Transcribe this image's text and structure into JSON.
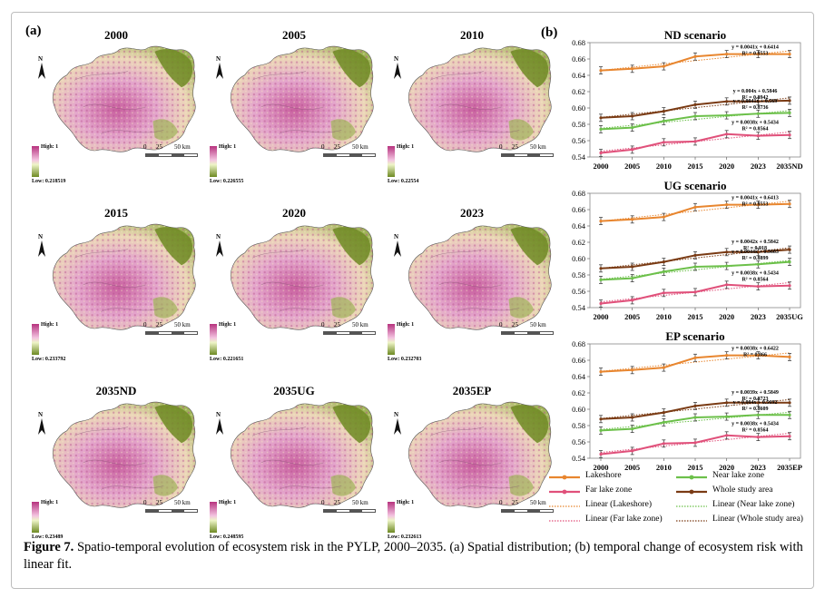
{
  "panel_a_label": "(a)",
  "panel_b_label": "(b)",
  "maps": [
    {
      "title": "2000",
      "low": "Low: 0.218519"
    },
    {
      "title": "2005",
      "low": "Low: 0.226555"
    },
    {
      "title": "2010",
      "low": "Low: 0.22554"
    },
    {
      "title": "2015",
      "low": "Low: 0.233792"
    },
    {
      "title": "2020",
      "low": "Low: 0.221651"
    },
    {
      "title": "2023",
      "low": "Low: 0.232703"
    },
    {
      "title": "2035ND",
      "low": "Low: 0.23489"
    },
    {
      "title": "2035UG",
      "low": "Low: 0.248595"
    },
    {
      "title": "2035EP",
      "low": "Low: 0.232613"
    }
  ],
  "map_common": {
    "high": "High: 1",
    "north": "N",
    "scale_labels": [
      "0",
      "25",
      "50 km"
    ]
  },
  "colors": {
    "lakeshore": "#e8862f",
    "near": "#6cc04a",
    "far": "#e0507a",
    "whole": "#7a3b14",
    "map_pink": "#d98bbf",
    "map_green": "#6e8a23"
  },
  "chart_data": [
    {
      "type": "line",
      "title": "ND scenario",
      "categories": [
        "2000",
        "2005",
        "2010",
        "2015",
        "2020",
        "2023",
        "2035ND"
      ],
      "ylim": [
        0.54,
        0.68
      ],
      "yticks": [
        "0.54",
        "0.56",
        "0.58",
        "0.60",
        "0.62",
        "0.64",
        "0.66",
        "0.68"
      ],
      "series": [
        {
          "name": "Lakeshore",
          "key": "lakeshore",
          "values": [
            0.646,
            0.648,
            0.651,
            0.663,
            0.666,
            0.666,
            0.666
          ]
        },
        {
          "name": "Whole study area",
          "key": "whole",
          "values": [
            0.588,
            0.59,
            0.596,
            0.604,
            0.608,
            0.608,
            0.609
          ]
        },
        {
          "name": "Near lake zone",
          "key": "near",
          "values": [
            0.574,
            0.576,
            0.584,
            0.59,
            0.591,
            0.593,
            0.594
          ]
        },
        {
          "name": "Far lake zone",
          "key": "far",
          "values": [
            0.545,
            0.549,
            0.558,
            0.559,
            0.568,
            0.566,
            0.567
          ]
        }
      ],
      "fit_labels": [
        {
          "eq": "y = 0.0041x + 0.6414",
          "r2": "R² = 0.8553"
        },
        {
          "eq": "y = 0.004x + 0.5846",
          "r2": "R² = 0.8942"
        },
        {
          "eq": "y = 0.0041x + 0.569",
          "r2": "R² = 0.8736"
        },
        {
          "eq": "y = 0.0038x + 0.5434",
          "r2": "R² = 0.8564"
        }
      ]
    },
    {
      "type": "line",
      "title": "UG scenario",
      "categories": [
        "2000",
        "2005",
        "2010",
        "2015",
        "2020",
        "2023",
        "2035UG"
      ],
      "ylim": [
        0.54,
        0.68
      ],
      "yticks": [
        "0.54",
        "0.56",
        "0.58",
        "0.60",
        "0.62",
        "0.64",
        "0.66",
        "0.68"
      ],
      "series": [
        {
          "name": "Lakeshore",
          "key": "lakeshore",
          "values": [
            0.646,
            0.648,
            0.651,
            0.663,
            0.666,
            0.666,
            0.667
          ]
        },
        {
          "name": "Whole study area",
          "key": "whole",
          "values": [
            0.588,
            0.59,
            0.596,
            0.604,
            0.608,
            0.608,
            0.611
          ]
        },
        {
          "name": "Near lake zone",
          "key": "near",
          "values": [
            0.574,
            0.576,
            0.584,
            0.59,
            0.591,
            0.593,
            0.596
          ]
        },
        {
          "name": "Far lake zone",
          "key": "far",
          "values": [
            0.545,
            0.549,
            0.558,
            0.559,
            0.568,
            0.566,
            0.567
          ]
        }
      ],
      "fit_labels": [
        {
          "eq": "y = 0.0041x + 0.6413",
          "r2": "R² = 0.8553"
        },
        {
          "eq": "y = 0.0042x + 0.5842",
          "r2": "R² = 0.918"
        },
        {
          "eq": "y = 0.0044x + 0.5683",
          "r2": "R² = 0.8899"
        },
        {
          "eq": "y = 0.0038x + 0.5434",
          "r2": "R² = 0.8564"
        }
      ]
    },
    {
      "type": "line",
      "title": "EP scenario",
      "categories": [
        "2000",
        "2005",
        "2010",
        "2015",
        "2020",
        "2023",
        "2035EP"
      ],
      "ylim": [
        0.54,
        0.68
      ],
      "yticks": [
        "0.54",
        "0.56",
        "0.58",
        "0.60",
        "0.62",
        "0.64",
        "0.66",
        "0.68"
      ],
      "series": [
        {
          "name": "Lakeshore",
          "key": "lakeshore",
          "values": [
            0.646,
            0.648,
            0.651,
            0.663,
            0.666,
            0.666,
            0.664
          ]
        },
        {
          "name": "Whole study area",
          "key": "whole",
          "values": [
            0.588,
            0.59,
            0.596,
            0.604,
            0.608,
            0.608,
            0.608
          ]
        },
        {
          "name": "Near lake zone",
          "key": "near",
          "values": [
            0.574,
            0.576,
            0.584,
            0.59,
            0.591,
            0.593,
            0.593
          ]
        },
        {
          "name": "Far lake zone",
          "key": "far",
          "values": [
            0.545,
            0.549,
            0.558,
            0.559,
            0.568,
            0.566,
            0.567
          ]
        }
      ],
      "fit_labels": [
        {
          "eq": "y = 0.0038x + 0.6422",
          "r2": "R² = 0.866"
        },
        {
          "eq": "y = 0.0039x + 0.5849",
          "r2": "R² = 0.8723"
        },
        {
          "eq": "y = 0.004x + 0.5692",
          "r2": "R² = 0.8609"
        },
        {
          "eq": "y = 0.0038x + 0.5434",
          "r2": "R² = 0.8564"
        }
      ]
    }
  ],
  "legend": [
    {
      "label": "Lakeshore",
      "key": "lakeshore",
      "style": "solid"
    },
    {
      "label": "Near lake zone",
      "key": "near",
      "style": "solid"
    },
    {
      "label": "Far lake zone",
      "key": "far",
      "style": "solid"
    },
    {
      "label": "Whole study area",
      "key": "whole",
      "style": "solid"
    },
    {
      "label": "Linear (Lakeshore)",
      "key": "lakeshore",
      "style": "dotted"
    },
    {
      "label": "Linear (Near lake zone)",
      "key": "near",
      "style": "dotted"
    },
    {
      "label": "Linear (Far lake zone)",
      "key": "far",
      "style": "dotted"
    },
    {
      "label": "Linear (Whole study area)",
      "key": "whole",
      "style": "dotted"
    }
  ],
  "caption": {
    "label": "Figure 7.",
    "text": " Spatio-temporal evolution of ecosystem risk in the PYLP, 2000–2035. (a) Spatial distribution; (b) temporal change of ecosystem risk with linear fit."
  }
}
